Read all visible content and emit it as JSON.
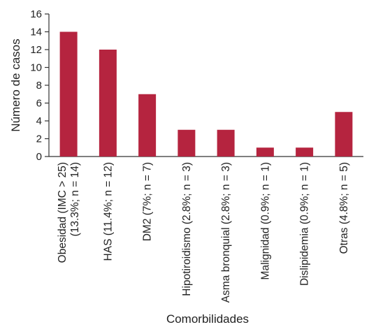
{
  "chart_data": {
    "type": "bar",
    "categories": [
      "Obesidad (IMC > 25) (13.3%; n = 14)",
      "HAS (11.4%; n = 12)",
      "DM2 (7%; n = 7)",
      "Hipotiroidismo (2.8%; n = 3)",
      "Asma bronquial (2.8%; n = 3)",
      "Malignidad (0.9%; n = 1)",
      "Dislipidemia (0.9%; n = 1)",
      "Otras (4.8%; n = 5)"
    ],
    "category_lines": [
      [
        "Obesidad (IMC > 25)",
        "(13.3%; n = 14)"
      ],
      [
        "HAS (11.4%; n = 12)"
      ],
      [
        "DM2 (7%; n = 7)"
      ],
      [
        "Hipotiroidismo (2.8%; n = 3)"
      ],
      [
        "Asma bronquial (2.8%; n = 3)"
      ],
      [
        "Malignidad (0.9%; n = 1)"
      ],
      [
        "Dislipidemia (0.9%; n = 1)"
      ],
      [
        "Otras (4.8%; n = 5)"
      ]
    ],
    "values": [
      14,
      12,
      7,
      3,
      3,
      1,
      1,
      5
    ],
    "title": "",
    "xlabel": "Comorbilidades",
    "ylabel": "Número de casos",
    "ylim": [
      0,
      16
    ],
    "yticks": [
      0,
      2,
      4,
      6,
      8,
      10,
      12,
      14,
      16
    ],
    "grid": false,
    "bar_color": "#b5243f"
  }
}
